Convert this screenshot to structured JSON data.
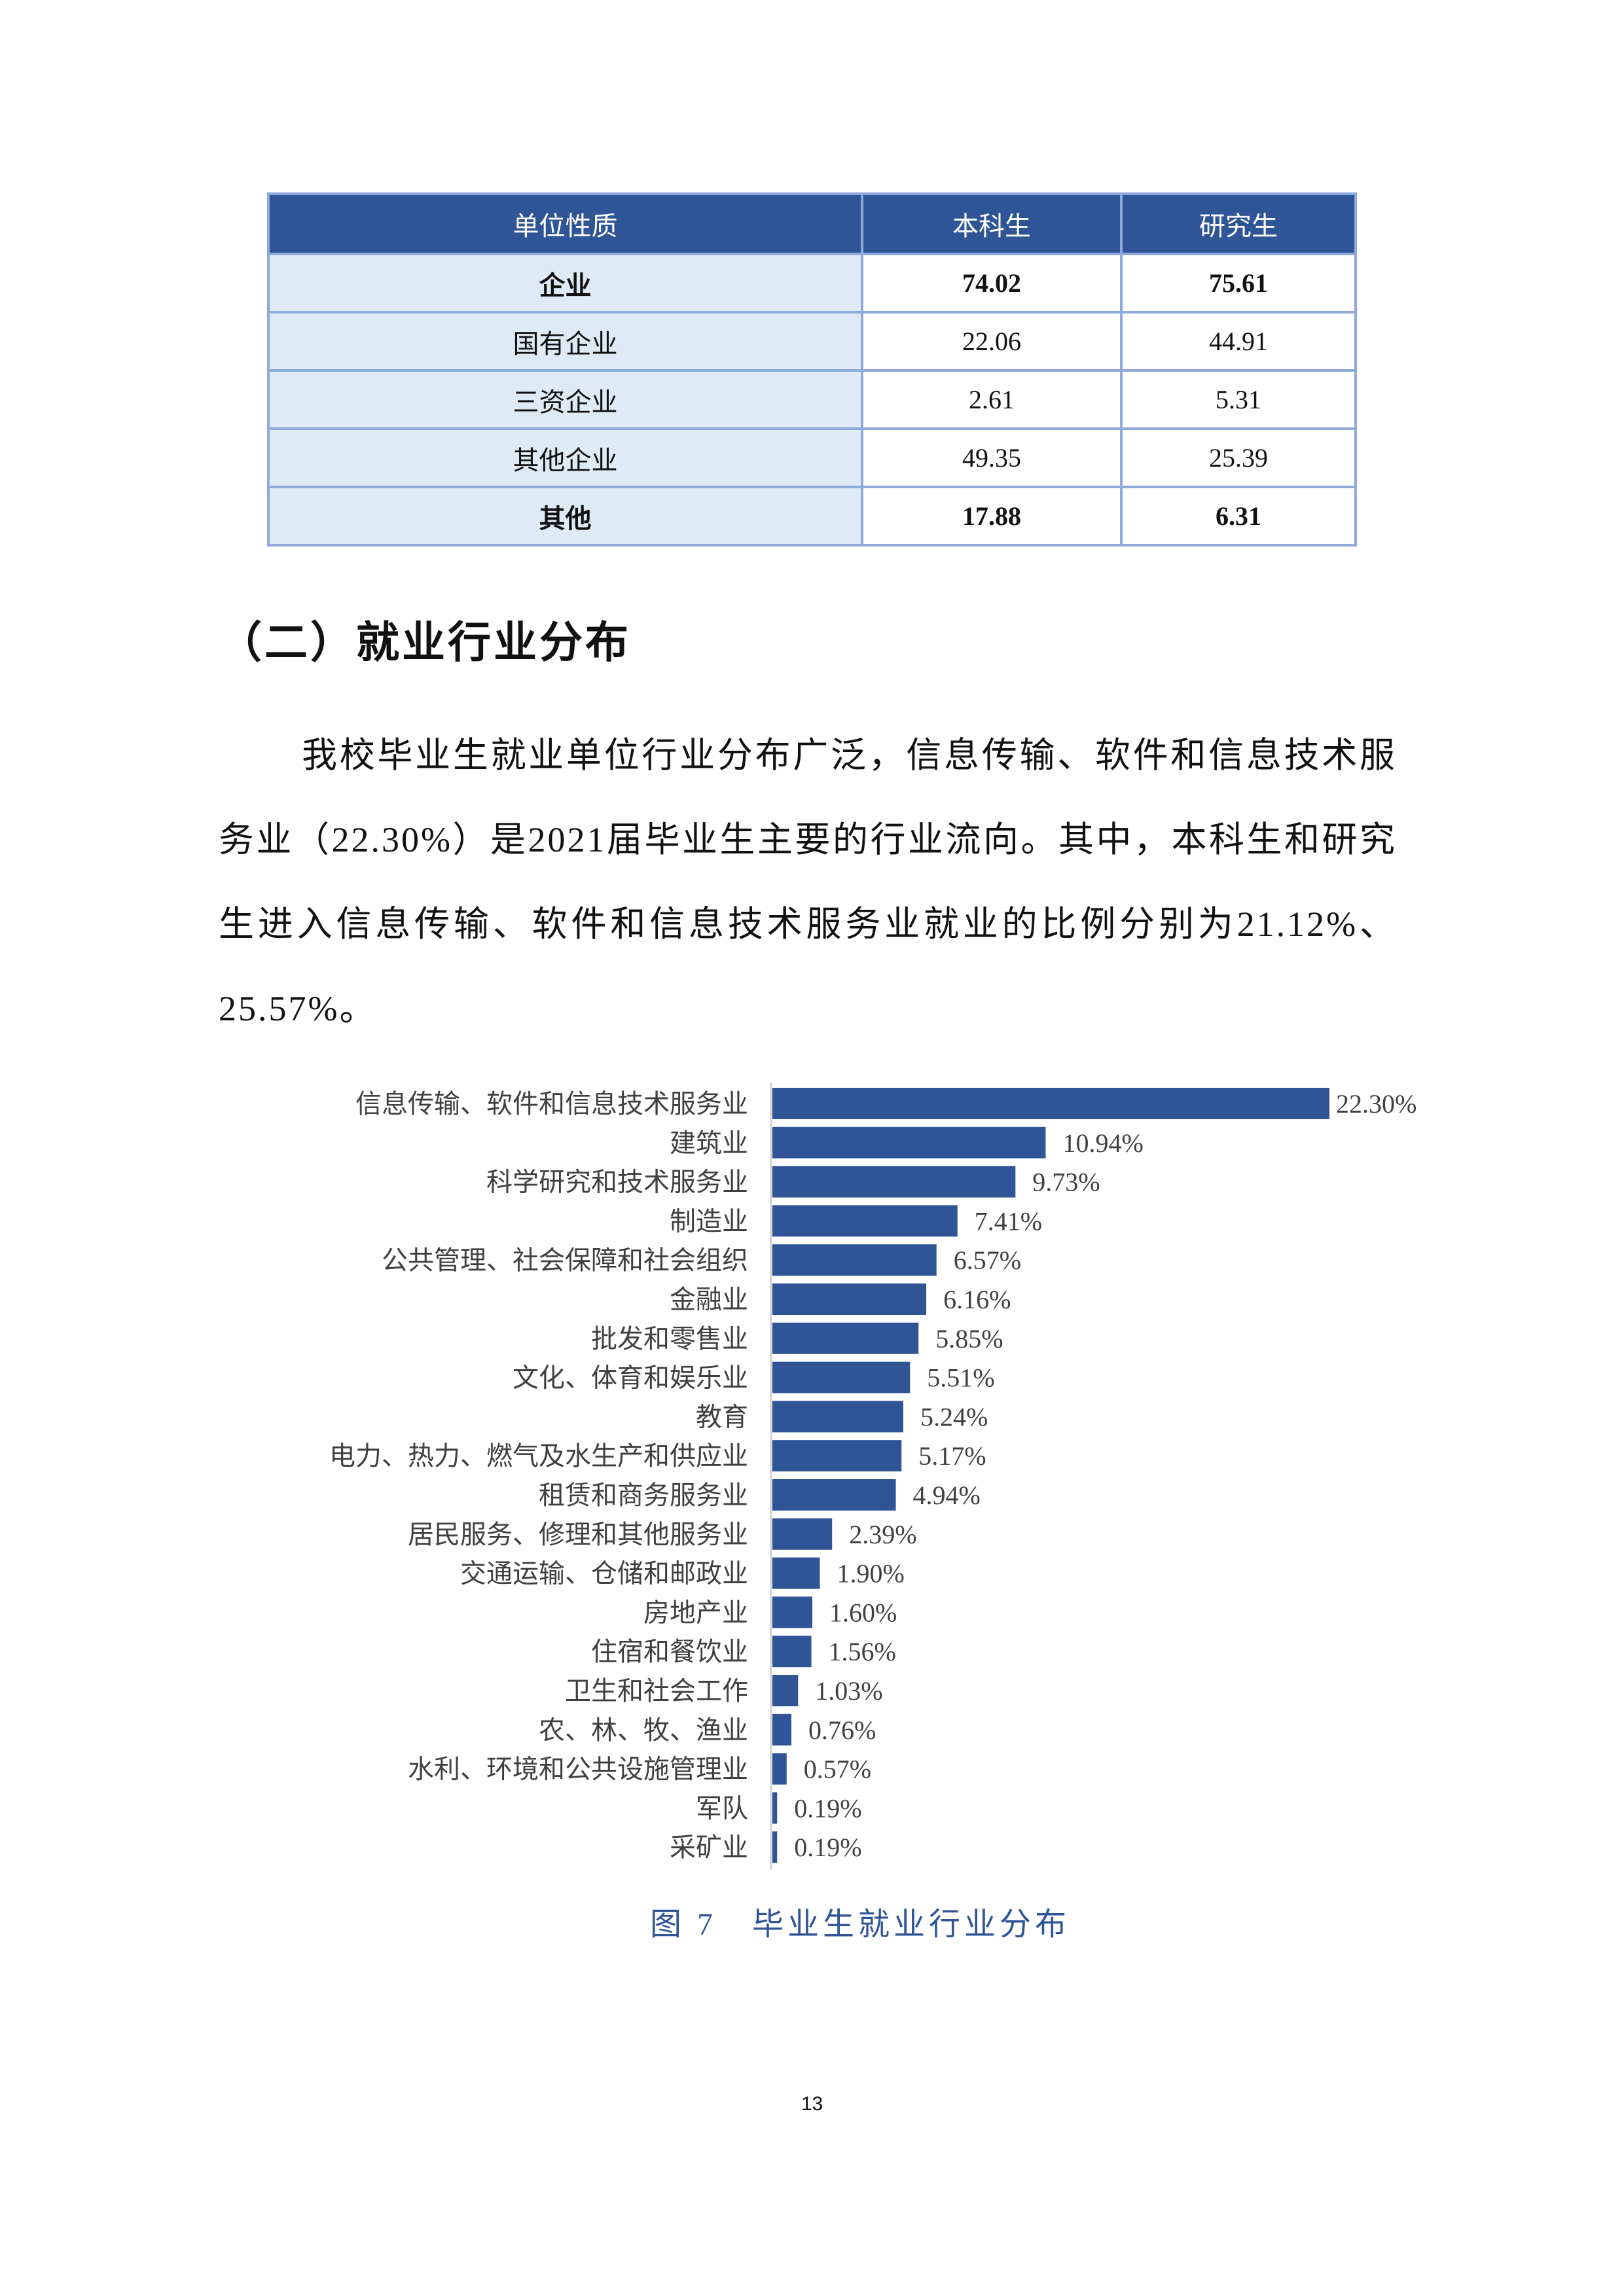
{
  "table": {
    "headers": [
      "单位性质",
      "本科生",
      "研究生"
    ],
    "rows": [
      {
        "label": "企业",
        "undergrad": "74.02",
        "graduate": "75.61",
        "bold": true
      },
      {
        "label": "国有企业",
        "undergrad": "22.06",
        "graduate": "44.91",
        "bold": false
      },
      {
        "label": "三资企业",
        "undergrad": "2.61",
        "graduate": "5.31",
        "bold": false
      },
      {
        "label": "其他企业",
        "undergrad": "49.35",
        "graduate": "25.39",
        "bold": false
      },
      {
        "label": "其他",
        "undergrad": "17.88",
        "graduate": "6.31",
        "bold": true
      }
    ]
  },
  "section_heading": "（二）就业行业分布",
  "paragraph": "我校毕业生就业单位行业分布广泛，信息传输、软件和信息技术服务业（22.30%）是2021届毕业生主要的行业流向。其中，本科生和研究生进入信息传输、软件和信息技术服务业就业的比例分别为21.12%、25.57%。",
  "chart_data": {
    "type": "bar",
    "orientation": "horizontal",
    "categories": [
      "信息传输、软件和信息技术服务业",
      "建筑业",
      "科学研究和技术服务业",
      "制造业",
      "公共管理、社会保障和社会组织",
      "金融业",
      "批发和零售业",
      "文化、体育和娱乐业",
      "教育",
      "电力、热力、燃气及水生产和供应业",
      "租赁和商务服务业",
      "居民服务、修理和其他服务业",
      "交通运输、仓储和邮政业",
      "房地产业",
      "住宿和餐饮业",
      "卫生和社会工作",
      "农、林、牧、渔业",
      "水利、环境和公共设施管理业",
      "军队",
      "采矿业"
    ],
    "values": [
      22.3,
      10.94,
      9.73,
      7.41,
      6.57,
      6.16,
      5.85,
      5.51,
      5.24,
      5.17,
      4.94,
      2.39,
      1.9,
      1.6,
      1.56,
      1.03,
      0.76,
      0.57,
      0.19,
      0.19
    ],
    "data_labels": [
      "22.30%",
      "10.94%",
      "9.73%",
      "7.41%",
      "6.57%",
      "6.16%",
      "5.85%",
      "5.51%",
      "5.24%",
      "5.17%",
      "4.94%",
      "2.39%",
      "1.90%",
      "1.60%",
      "1.56%",
      "1.03%",
      "0.76%",
      "0.57%",
      "0.19%",
      "0.19%"
    ],
    "bar_color": "#2F5597",
    "grid": false,
    "legend": "none"
  },
  "caption": "图 7　毕业生就业行业分布",
  "page_number": "13"
}
